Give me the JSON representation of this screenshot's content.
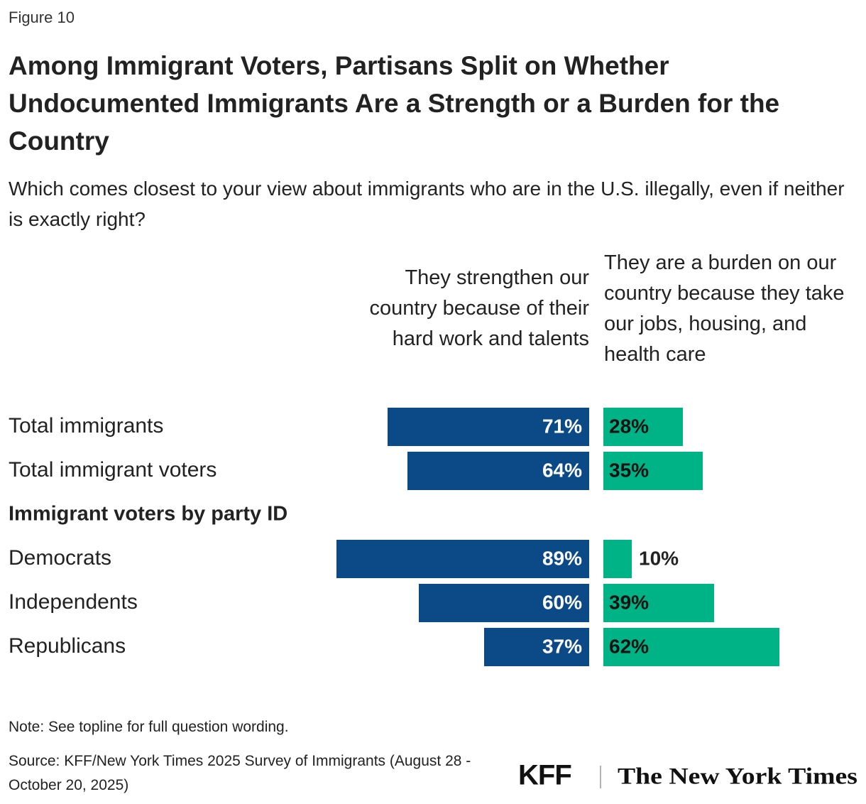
{
  "chart_data": {
    "type": "diverging-bar",
    "figure_label": "Figure 10",
    "title": "Among Immigrant Voters, Partisans Split on Whether Undocumented Immigrants Are a Strength or a Burden for the Country",
    "subtitle": "Which comes closest to your view about immigrants who are in the U.S. illegally, even if neither is exactly right?",
    "categories": [
      "Total immigrants",
      "Total immigrant voters",
      "Immigrant voters by party ID",
      "Democrats",
      "Independents",
      "Republicans"
    ],
    "series": [
      {
        "name": "They strengthen our country because of their hard work and talents",
        "color": "#0b4a87",
        "values": [
          71,
          64,
          null,
          89,
          60,
          37
        ],
        "value_labels": [
          "71%",
          "64%",
          null,
          "89%",
          "60%",
          "37%"
        ]
      },
      {
        "name": "They are a burden on our country because they take our jobs, housing, and health care",
        "color": "#00b386",
        "values": [
          28,
          35,
          null,
          10,
          39,
          62
        ],
        "value_labels": [
          "28%",
          "35%",
          null,
          "10%",
          "39%",
          "62%"
        ]
      }
    ],
    "note": "Note: See topline for full question wording.",
    "source": "Source: KFF/New York Times 2025 Survey of Immigrants (August 28 - October 20, 2025)",
    "logos": [
      "KFF",
      "The New York Times"
    ]
  }
}
